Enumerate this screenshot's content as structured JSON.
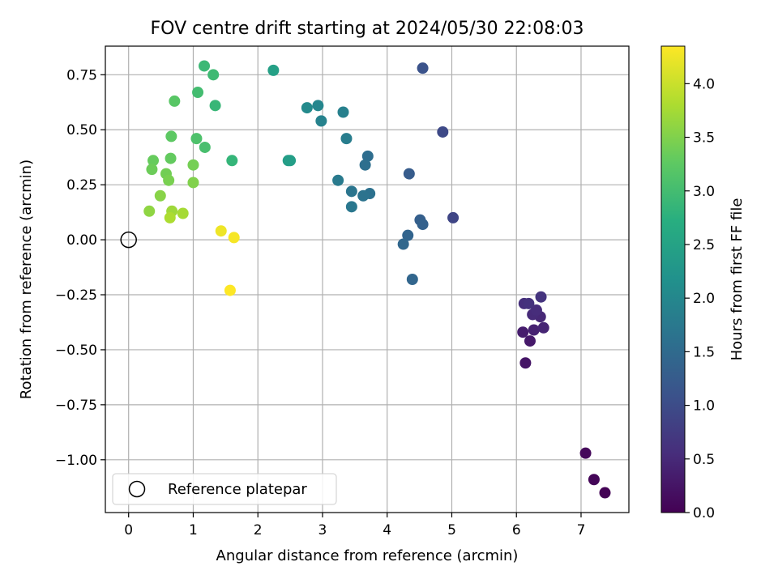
{
  "chart_data": {
    "type": "scatter",
    "title": "FOV centre drift starting at 2024/05/30 22:08:03",
    "xlabel": "Angular distance from reference (arcmin)",
    "ylabel": "Rotation from reference (arcmin)",
    "xlim": [
      -0.36,
      7.74
    ],
    "ylim": [
      -1.24,
      0.88
    ],
    "xticks": [
      0,
      1,
      2,
      3,
      4,
      5,
      6,
      7
    ],
    "xtick_labels": [
      "0",
      "1",
      "2",
      "3",
      "4",
      "5",
      "6",
      "7"
    ],
    "yticks": [
      -1.0,
      -0.75,
      -0.5,
      -0.25,
      0.0,
      0.25,
      0.5,
      0.75
    ],
    "ytick_labels": [
      "−1.00",
      "−0.75",
      "−0.50",
      "−0.25",
      "0.00",
      "0.25",
      "0.50",
      "0.75"
    ],
    "grid": true,
    "legend": {
      "position": "lower-left",
      "label": "Reference platepar",
      "marker": "open-circle"
    },
    "reference_point": {
      "x": 0,
      "y": 0
    },
    "colorbar": {
      "label": "Hours from first FF file",
      "colormap": "viridis",
      "range": [
        0,
        4.35
      ],
      "ticks": [
        0.0,
        0.5,
        1.0,
        1.5,
        2.0,
        2.5,
        3.0,
        3.5,
        4.0
      ],
      "tick_labels": [
        "0.0",
        "0.5",
        "1.0",
        "1.5",
        "2.0",
        "2.5",
        "3.0",
        "3.5",
        "4.0"
      ]
    },
    "points": [
      {
        "x": 7.37,
        "y": -1.15,
        "hours": 0.02
      },
      {
        "x": 7.2,
        "y": -1.09,
        "hours": 0.06
      },
      {
        "x": 7.07,
        "y": -0.97,
        "hours": 0.1
      },
      {
        "x": 6.14,
        "y": -0.56,
        "hours": 0.25
      },
      {
        "x": 6.21,
        "y": -0.46,
        "hours": 0.3
      },
      {
        "x": 6.1,
        "y": -0.42,
        "hours": 0.35
      },
      {
        "x": 6.27,
        "y": -0.41,
        "hours": 0.4
      },
      {
        "x": 6.42,
        "y": -0.4,
        "hours": 0.45
      },
      {
        "x": 6.37,
        "y": -0.35,
        "hours": 0.48
      },
      {
        "x": 6.25,
        "y": -0.34,
        "hours": 0.52
      },
      {
        "x": 6.31,
        "y": -0.32,
        "hours": 0.55
      },
      {
        "x": 6.12,
        "y": -0.29,
        "hours": 0.58
      },
      {
        "x": 6.19,
        "y": -0.29,
        "hours": 0.62
      },
      {
        "x": 6.38,
        "y": -0.26,
        "hours": 0.65
      },
      {
        "x": 5.02,
        "y": 0.1,
        "hours": 0.9
      },
      {
        "x": 4.86,
        "y": 0.49,
        "hours": 0.95
      },
      {
        "x": 4.55,
        "y": 0.78,
        "hours": 1.1
      },
      {
        "x": 4.34,
        "y": 0.3,
        "hours": 1.25
      },
      {
        "x": 4.51,
        "y": 0.09,
        "hours": 1.3
      },
      {
        "x": 4.55,
        "y": 0.07,
        "hours": 1.35
      },
      {
        "x": 4.32,
        "y": 0.02,
        "hours": 1.4
      },
      {
        "x": 4.25,
        "y": -0.02,
        "hours": 1.45
      },
      {
        "x": 4.39,
        "y": -0.18,
        "hours": 1.42
      },
      {
        "x": 3.7,
        "y": 0.38,
        "hours": 1.55
      },
      {
        "x": 3.66,
        "y": 0.34,
        "hours": 1.58
      },
      {
        "x": 3.73,
        "y": 0.21,
        "hours": 1.62
      },
      {
        "x": 3.63,
        "y": 0.2,
        "hours": 1.65
      },
      {
        "x": 3.45,
        "y": 0.22,
        "hours": 1.68
      },
      {
        "x": 3.45,
        "y": 0.15,
        "hours": 1.72
      },
      {
        "x": 3.24,
        "y": 0.27,
        "hours": 1.78
      },
      {
        "x": 3.37,
        "y": 0.46,
        "hours": 1.82
      },
      {
        "x": 3.32,
        "y": 0.58,
        "hours": 1.88
      },
      {
        "x": 2.98,
        "y": 0.54,
        "hours": 1.92
      },
      {
        "x": 2.93,
        "y": 0.61,
        "hours": 1.98
      },
      {
        "x": 2.76,
        "y": 0.6,
        "hours": 2.05
      },
      {
        "x": 2.47,
        "y": 0.36,
        "hours": 2.4
      },
      {
        "x": 2.5,
        "y": 0.36,
        "hours": 2.42
      },
      {
        "x": 2.24,
        "y": 0.77,
        "hours": 2.45
      },
      {
        "x": 1.6,
        "y": 0.36,
        "hours": 2.85
      },
      {
        "x": 1.34,
        "y": 0.61,
        "hours": 2.88
      },
      {
        "x": 1.17,
        "y": 0.79,
        "hours": 2.92
      },
      {
        "x": 1.31,
        "y": 0.75,
        "hours": 2.95
      },
      {
        "x": 1.07,
        "y": 0.67,
        "hours": 3.0
      },
      {
        "x": 1.18,
        "y": 0.42,
        "hours": 3.05
      },
      {
        "x": 1.05,
        "y": 0.46,
        "hours": 3.1
      },
      {
        "x": 0.71,
        "y": 0.63,
        "hours": 3.2
      },
      {
        "x": 0.66,
        "y": 0.47,
        "hours": 3.25
      },
      {
        "x": 0.65,
        "y": 0.37,
        "hours": 3.3
      },
      {
        "x": 0.38,
        "y": 0.36,
        "hours": 3.32
      },
      {
        "x": 0.36,
        "y": 0.32,
        "hours": 3.36
      },
      {
        "x": 0.58,
        "y": 0.3,
        "hours": 3.4
      },
      {
        "x": 1.0,
        "y": 0.34,
        "hours": 3.42
      },
      {
        "x": 0.62,
        "y": 0.27,
        "hours": 3.45
      },
      {
        "x": 1.0,
        "y": 0.26,
        "hours": 3.5
      },
      {
        "x": 0.49,
        "y": 0.2,
        "hours": 3.55
      },
      {
        "x": 0.32,
        "y": 0.13,
        "hours": 3.6
      },
      {
        "x": 0.67,
        "y": 0.13,
        "hours": 3.7
      },
      {
        "x": 0.84,
        "y": 0.12,
        "hours": 3.75
      },
      {
        "x": 0.64,
        "y": 0.1,
        "hours": 3.8
      },
      {
        "x": 1.43,
        "y": 0.04,
        "hours": 4.25
      },
      {
        "x": 1.63,
        "y": 0.01,
        "hours": 4.3
      },
      {
        "x": 1.57,
        "y": -0.23,
        "hours": 4.35
      }
    ]
  }
}
